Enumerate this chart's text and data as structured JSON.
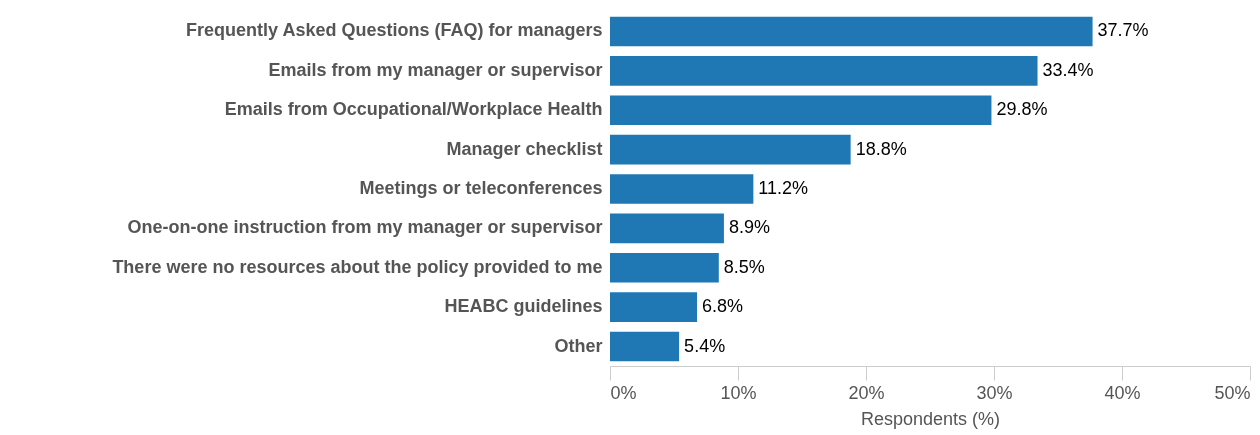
{
  "chart_data": {
    "type": "bar",
    "orientation": "horizontal",
    "xlabel": "Respondents (%)",
    "categories": [
      "Frequently Asked Questions (FAQ) for managers",
      "Emails from my manager or supervisor",
      "Emails from Occupational/Workplace Health",
      "Manager checklist",
      "Meetings or teleconferences",
      "One-on-one instruction from my manager or supervisor",
      "There were no resources about the policy provided to me",
      "HEABC guidelines",
      "Other"
    ],
    "values": [
      37.7,
      33.4,
      29.8,
      18.8,
      11.2,
      8.9,
      8.5,
      6.8,
      5.4
    ],
    "value_labels": [
      "37.7%",
      "33.4%",
      "29.8%",
      "18.8%",
      "11.2%",
      "8.9%",
      "8.5%",
      "6.8%",
      "5.4%"
    ],
    "color": "#1f77b4",
    "xlim": [
      0,
      50
    ],
    "xticks": [
      {
        "value": 0,
        "label": "0%"
      },
      {
        "value": 10,
        "label": "10%"
      },
      {
        "value": 20,
        "label": "20%"
      },
      {
        "value": 30,
        "label": "30%"
      },
      {
        "value": 40,
        "label": "40%"
      },
      {
        "value": 50,
        "label": "50%"
      }
    ],
    "grid": false
  }
}
